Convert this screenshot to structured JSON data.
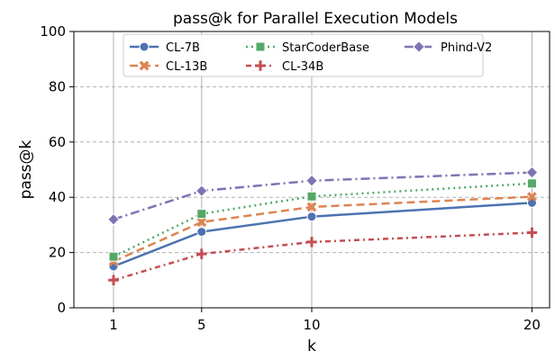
{
  "chart_data": {
    "type": "line",
    "title": "pass@k for Parallel Execution Models",
    "xlabel": "k",
    "ylabel": "pass@k",
    "x": [
      1,
      5,
      10,
      20
    ],
    "x_ticks": [
      "1",
      "5",
      "10",
      "20"
    ],
    "xlim": [
      -0.8,
      20.8
    ],
    "ylim": [
      0,
      100
    ],
    "y_ticks": [
      "0",
      "20",
      "40",
      "60",
      "80",
      "100"
    ],
    "grid": true,
    "legend_position": "top-center",
    "series": [
      {
        "name": "CL-7B",
        "values": [
          15.0,
          27.5,
          33.0,
          38.0
        ],
        "color": "#4c72b0",
        "dash": "",
        "marker": "circle"
      },
      {
        "name": "CL-13B",
        "values": [
          16.8,
          31.0,
          36.5,
          40.2
        ],
        "color": "#dd8452",
        "dash": "9 5",
        "marker": "x"
      },
      {
        "name": "StarCoderBase",
        "values": [
          18.5,
          34.0,
          40.3,
          45.0
        ],
        "color": "#55a868",
        "dash": "2 4",
        "marker": "square"
      },
      {
        "name": "CL-34B",
        "values": [
          10.0,
          19.5,
          23.8,
          27.2
        ],
        "color": "#c44e52",
        "dash": "6 4 2 4",
        "marker": "plus"
      },
      {
        "name": "Phind-V2",
        "values": [
          32.0,
          42.3,
          46.0,
          49.0
        ],
        "color": "#8172b3",
        "dash": "10 4 2 4",
        "marker": "diamond"
      }
    ]
  }
}
